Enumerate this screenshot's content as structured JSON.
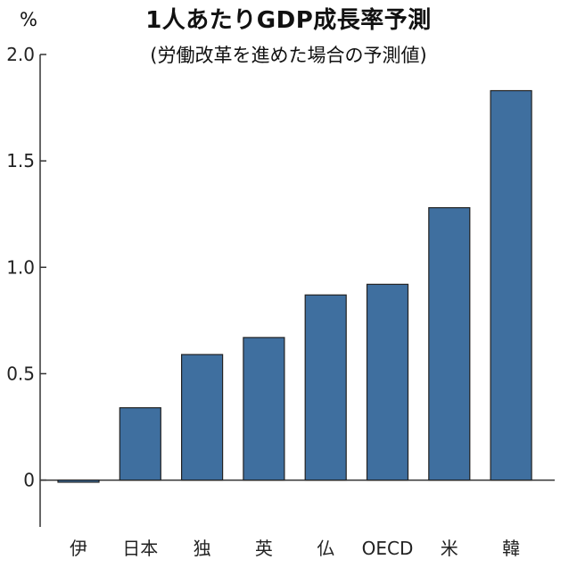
{
  "chart_data": {
    "type": "bar",
    "title": "1人あたりGDP成長率予測",
    "subtitle": "(労働改革を進めた場合の予測値)",
    "unit_label": "%",
    "categories": [
      "伊",
      "日本",
      "独",
      "英",
      "仏",
      "OECD",
      "米",
      "韓"
    ],
    "values": [
      -0.01,
      0.34,
      0.59,
      0.67,
      0.87,
      0.92,
      1.28,
      1.83
    ],
    "ylim": [
      -0.22,
      2.0
    ],
    "yticks": [
      {
        "value": 0,
        "label": "0"
      },
      {
        "value": 0.5,
        "label": "0.5"
      },
      {
        "value": 1.0,
        "label": "1.0"
      },
      {
        "value": 1.5,
        "label": "1.5"
      },
      {
        "value": 2.0,
        "label": "2.0"
      }
    ],
    "grid": false,
    "bar_color": "#3f6f9f",
    "bar_edge_color": "#222222"
  }
}
